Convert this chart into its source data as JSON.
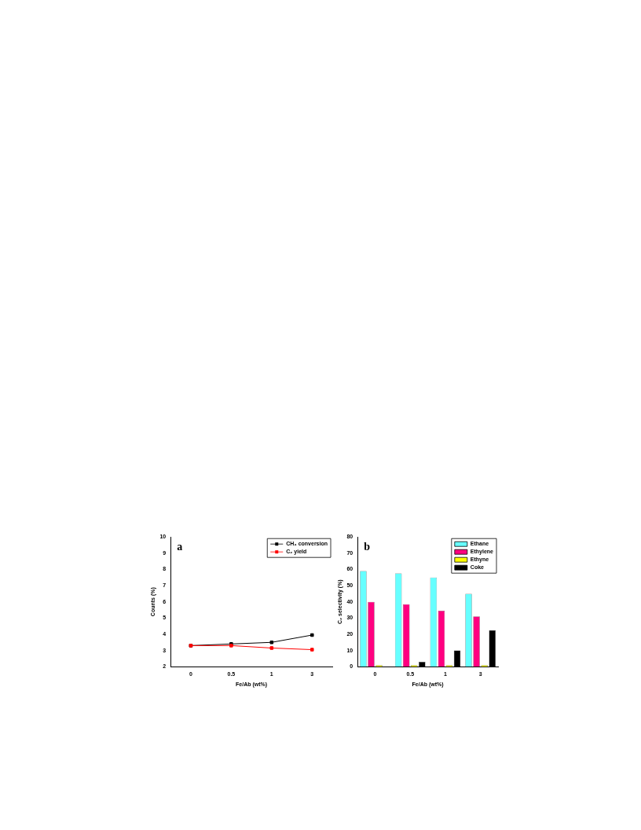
{
  "chart_data": [
    {
      "type": "line",
      "categories": [
        "0",
        "0.5",
        "1",
        "3"
      ],
      "xlabel": "Fe/Ab (wt%)",
      "ylabel": "Counts (%)",
      "ylim": [
        2,
        10
      ],
      "yticks": [
        2,
        3,
        4,
        5,
        6,
        7,
        8,
        9,
        10
      ],
      "grid": false,
      "legend": "top right",
      "marker": "square",
      "line_style": "solid",
      "annotations": [
        "a"
      ],
      "series": [
        {
          "name": "CH₄ conversion",
          "color": "#000000",
          "values": [
            3.3,
            3.4,
            3.5,
            3.95
          ]
        },
        {
          "name": "C₂ yield",
          "color": "#ff0000",
          "values": [
            3.3,
            3.3,
            3.15,
            3.05
          ]
        }
      ]
    },
    {
      "type": "bar",
      "categories": [
        "0",
        "0.5",
        "1",
        "3"
      ],
      "xlabel": "Fe/Ab (wt%)",
      "ylabel": "C₂ selectivity (%)",
      "ylim": [
        0,
        80
      ],
      "yticks": [
        0,
        10,
        20,
        30,
        40,
        50,
        60,
        70,
        80
      ],
      "grid": false,
      "legend": "top right",
      "annotations": [
        "b"
      ],
      "series": [
        {
          "name": "Ethane",
          "color": "#66ffff",
          "values": [
            59,
            57.5,
            55,
            45
          ]
        },
        {
          "name": "Ethylene",
          "color": "#ff0080",
          "values": [
            40,
            38.5,
            34.5,
            31
          ]
        },
        {
          "name": "Ethyne",
          "color": "#ffff00",
          "values": [
            1,
            1,
            1,
            1
          ]
        },
        {
          "name": "Coke",
          "color": "#000000",
          "values": [
            0,
            3,
            10,
            22.5
          ]
        }
      ]
    }
  ]
}
